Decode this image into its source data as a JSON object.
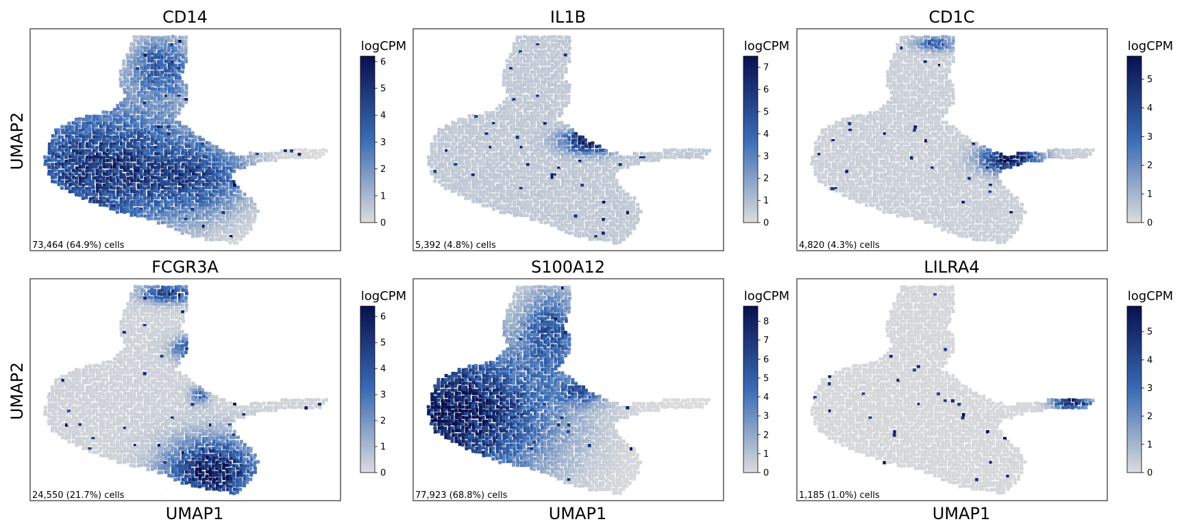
{
  "chart_data": [
    {
      "type": "scatter",
      "title": "CD14",
      "pattern": "cd14",
      "colorbar_label": "logCPM",
      "colorbar_max": 6.2,
      "colorbar_ticks": [
        0,
        1,
        2,
        3,
        4,
        5,
        6
      ],
      "cell_count_label": "73,464 (64.9%) cells"
    },
    {
      "type": "scatter",
      "title": "IL1B",
      "pattern": "il1b",
      "colorbar_label": "logCPM",
      "colorbar_max": 7.5,
      "colorbar_ticks": [
        0,
        1,
        2,
        3,
        4,
        5,
        6,
        7
      ],
      "cell_count_label": "5,392 (4.8%) cells"
    },
    {
      "type": "scatter",
      "title": "CD1C",
      "pattern": "cd1c",
      "colorbar_label": "logCPM",
      "colorbar_max": 5.8,
      "colorbar_ticks": [
        0,
        1,
        2,
        3,
        4,
        5
      ],
      "cell_count_label": "4,820 (4.3%) cells"
    },
    {
      "type": "scatter",
      "title": "FCGR3A",
      "pattern": "fcgr3a",
      "colorbar_label": "logCPM",
      "colorbar_max": 6.4,
      "colorbar_ticks": [
        0,
        1,
        2,
        3,
        4,
        5,
        6
      ],
      "cell_count_label": "24,550 (21.7%) cells"
    },
    {
      "type": "scatter",
      "title": "S100A12",
      "pattern": "s100a12",
      "colorbar_label": "logCPM",
      "colorbar_max": 8.8,
      "colorbar_ticks": [
        0,
        1,
        2,
        3,
        4,
        5,
        6,
        7,
        8
      ],
      "cell_count_label": "77,923 (68.8%) cells"
    },
    {
      "type": "scatter",
      "title": "LILRA4",
      "pattern": "lilra4",
      "colorbar_label": "logCPM",
      "colorbar_max": 5.9,
      "colorbar_ticks": [
        0,
        1,
        2,
        3,
        4,
        5
      ],
      "cell_count_label": "1,185 (1.0%) cells"
    }
  ],
  "axes": {
    "xlabel": "UMAP1",
    "ylabel": "UMAP2"
  },
  "colors": {
    "low": "#dcdcdc",
    "mid": "#3a6bb5",
    "high": "#08104e",
    "background": "#ffffff"
  }
}
